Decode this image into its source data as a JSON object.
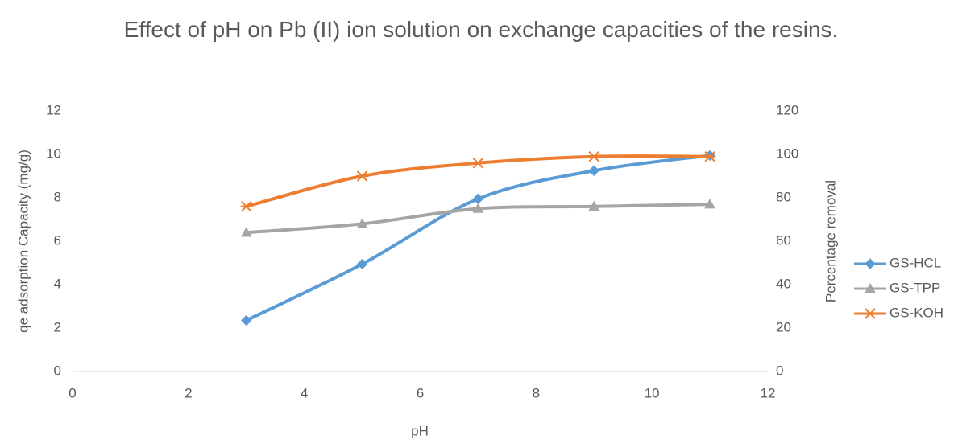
{
  "chart_data": {
    "type": "line",
    "title": "Effect of pH on Pb (II) ion solution on exchange capacities of the resins.",
    "x_label": "pH",
    "y_label": "qe adsorption Capacity (mg/g)",
    "y2_label": "Percentage removal",
    "x": [
      3,
      5,
      7,
      9,
      11
    ],
    "series": [
      {
        "name": "GS-HCL",
        "color": "#5b9bd5",
        "marker": "diamond",
        "values": [
          2.35,
          4.95,
          7.95,
          9.25,
          9.95
        ]
      },
      {
        "name": "GS-TPP",
        "color": "#a5a5a5",
        "marker": "triangle",
        "values": [
          6.4,
          6.8,
          7.5,
          7.6,
          7.7
        ]
      },
      {
        "name": "GS-KOH",
        "color": "#ed7d31",
        "marker": "star",
        "values": [
          7.6,
          9.0,
          9.6,
          9.9,
          9.9
        ]
      }
    ],
    "xlim": [
      0,
      12
    ],
    "xticks": [
      0,
      2,
      4,
      6,
      8,
      10,
      12
    ],
    "ylim": [
      0,
      12
    ],
    "yticks": [
      0,
      2,
      4,
      6,
      8,
      10,
      12
    ],
    "y2lim": [
      0,
      120
    ],
    "y2ticks": [
      0,
      20,
      40,
      60,
      80,
      100,
      120
    ],
    "smooth": true,
    "grid": false,
    "legend": "right"
  }
}
